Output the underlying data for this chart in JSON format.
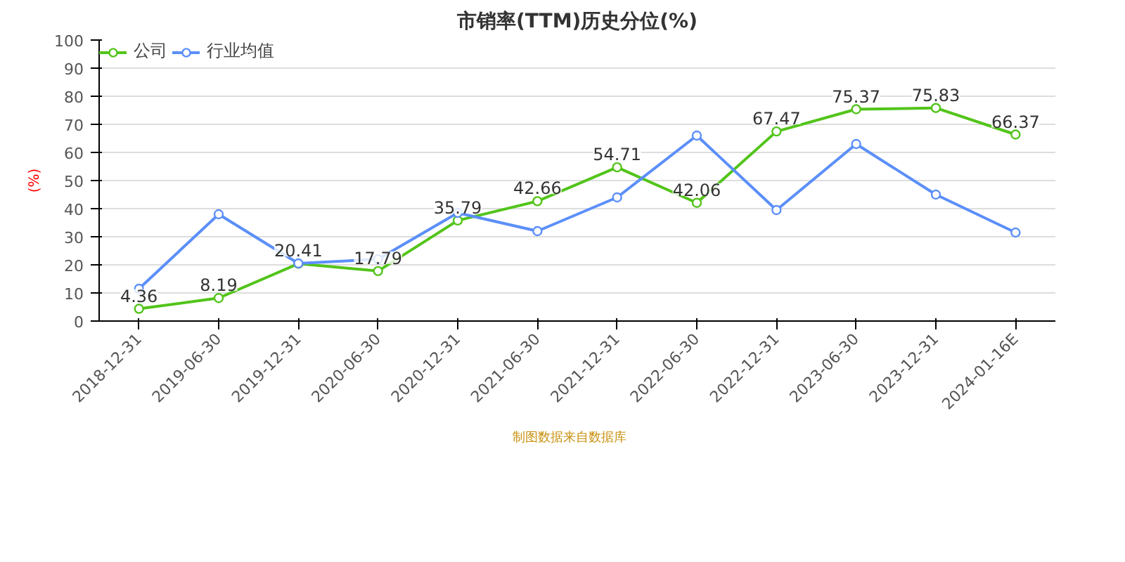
{
  "chart_data": {
    "type": "line",
    "title": "市销率(TTM)历史分位(%)",
    "ylabel": "(%)",
    "categories": [
      "2018-12-31",
      "2019-06-30",
      "2019-12-31",
      "2020-06-30",
      "2020-12-31",
      "2021-06-30",
      "2021-12-31",
      "2022-06-30",
      "2022-12-31",
      "2023-06-30",
      "2023-12-31",
      "2024-01-16E"
    ],
    "series": [
      {
        "name": "公司",
        "color": "#52c41a",
        "values": [
          4.36,
          8.19,
          20.41,
          17.79,
          35.79,
          42.66,
          54.71,
          42.06,
          67.47,
          75.37,
          75.83,
          66.37
        ],
        "value_labels": [
          "4.36",
          "8.19",
          "20.41",
          "17.79",
          "35.79",
          "42.66",
          "54.71",
          "42.06",
          "67.47",
          "75.37",
          "75.83",
          "66.37"
        ]
      },
      {
        "name": "行业均值",
        "color": "#5b8ff9",
        "values": [
          11.5,
          38,
          20.5,
          22,
          38.5,
          32,
          44,
          66,
          39.5,
          63,
          45,
          31.5
        ]
      }
    ],
    "ylim": [
      0,
      100
    ],
    "yticks": [
      0,
      10,
      20,
      30,
      40,
      50,
      60,
      70,
      80,
      90,
      100
    ],
    "grid": "y",
    "legend": "top left",
    "marker": "circle",
    "line_style": "solid",
    "annotations": [
      "制图数据来自数据库"
    ]
  }
}
